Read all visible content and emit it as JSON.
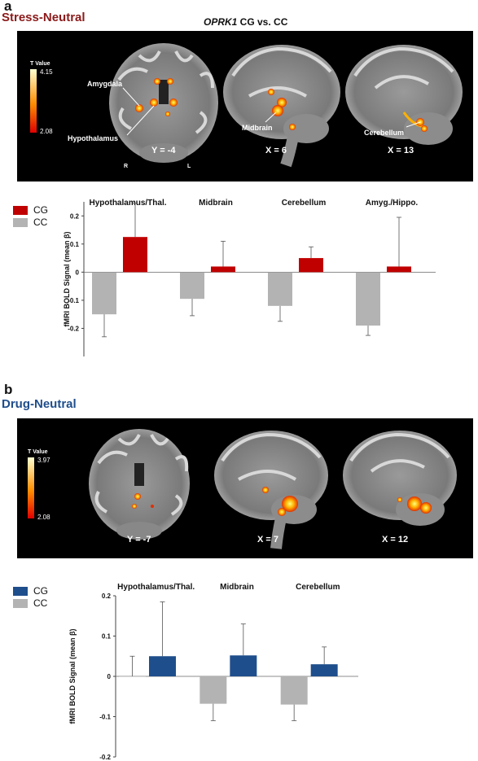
{
  "panel_a": {
    "letter": "a",
    "condition": "Stress-Neutral",
    "condition_color": "#8b1a1a",
    "contrast_gene": "OPRK1",
    "contrast_rest": " CG vs. CC",
    "colorbar": {
      "title": "T Value",
      "max": "4.15",
      "min": "2.08"
    },
    "slices": [
      {
        "view": "coronal",
        "label": "Y = -4"
      },
      {
        "view": "sagittal",
        "label": "X = 6"
      },
      {
        "view": "sagittal",
        "label": "X = 13"
      }
    ],
    "annotations": [
      "Amygdala",
      "Hypothalamus",
      "Midbrain",
      "Cerebellum"
    ],
    "orientation": {
      "right": "R",
      "left": "L"
    }
  },
  "panel_b": {
    "letter": "b",
    "condition": "Drug-Neutral",
    "condition_color": "#1f4e8c",
    "colorbar": {
      "title": "T Value",
      "max": "3.97",
      "min": "2.08"
    },
    "slices": [
      {
        "view": "coronal",
        "label": "Y = -7"
      },
      {
        "view": "sagittal",
        "label": "X = 7"
      },
      {
        "view": "sagittal",
        "label": "X = 12"
      }
    ],
    "annotations": []
  },
  "chart_data": [
    {
      "type": "bar",
      "categories": [
        "Hypothalamus/Thal.",
        "Midbrain",
        "Cerebellum",
        "Amyg./Hippo."
      ],
      "series": [
        {
          "name": "CC",
          "color": "#b3b3b3",
          "values": [
            -0.15,
            -0.095,
            -0.12,
            -0.19
          ],
          "errors": [
            0.08,
            0.06,
            0.055,
            0.035
          ]
        },
        {
          "name": "CG",
          "color": "#c00000",
          "values": [
            0.125,
            0.02,
            0.05,
            0.02
          ],
          "errors": [
            0.12,
            0.09,
            0.04,
            0.175
          ]
        }
      ],
      "ylabel": "fMRI BOLD Signal (mean β)",
      "yticks": [
        "0.2",
        "0.1",
        "0",
        "-0.1",
        "-0.2"
      ],
      "ylim": [
        -0.3,
        0.25
      ],
      "legend": "top-left"
    },
    {
      "type": "bar",
      "categories": [
        "Hypothalamus/Thal.",
        "Midbrain",
        "Cerebellum"
      ],
      "series": [
        {
          "name": "CC",
          "color": "#b3b3b3",
          "values": [
            0.0,
            -0.068,
            -0.07
          ],
          "errors": [
            0.05,
            0.042,
            0.04
          ]
        },
        {
          "name": "CG",
          "color": "#1f4e8c",
          "values": [
            0.05,
            0.052,
            0.03
          ],
          "errors": [
            0.135,
            0.078,
            0.043
          ]
        }
      ],
      "ylabel": "fMRI BOLD Signal (mean β)",
      "yticks": [
        "0.2",
        "0.1",
        "0",
        "-0.1",
        "-0.2"
      ],
      "ylim": [
        -0.2,
        0.2
      ],
      "legend": "top-left"
    }
  ]
}
